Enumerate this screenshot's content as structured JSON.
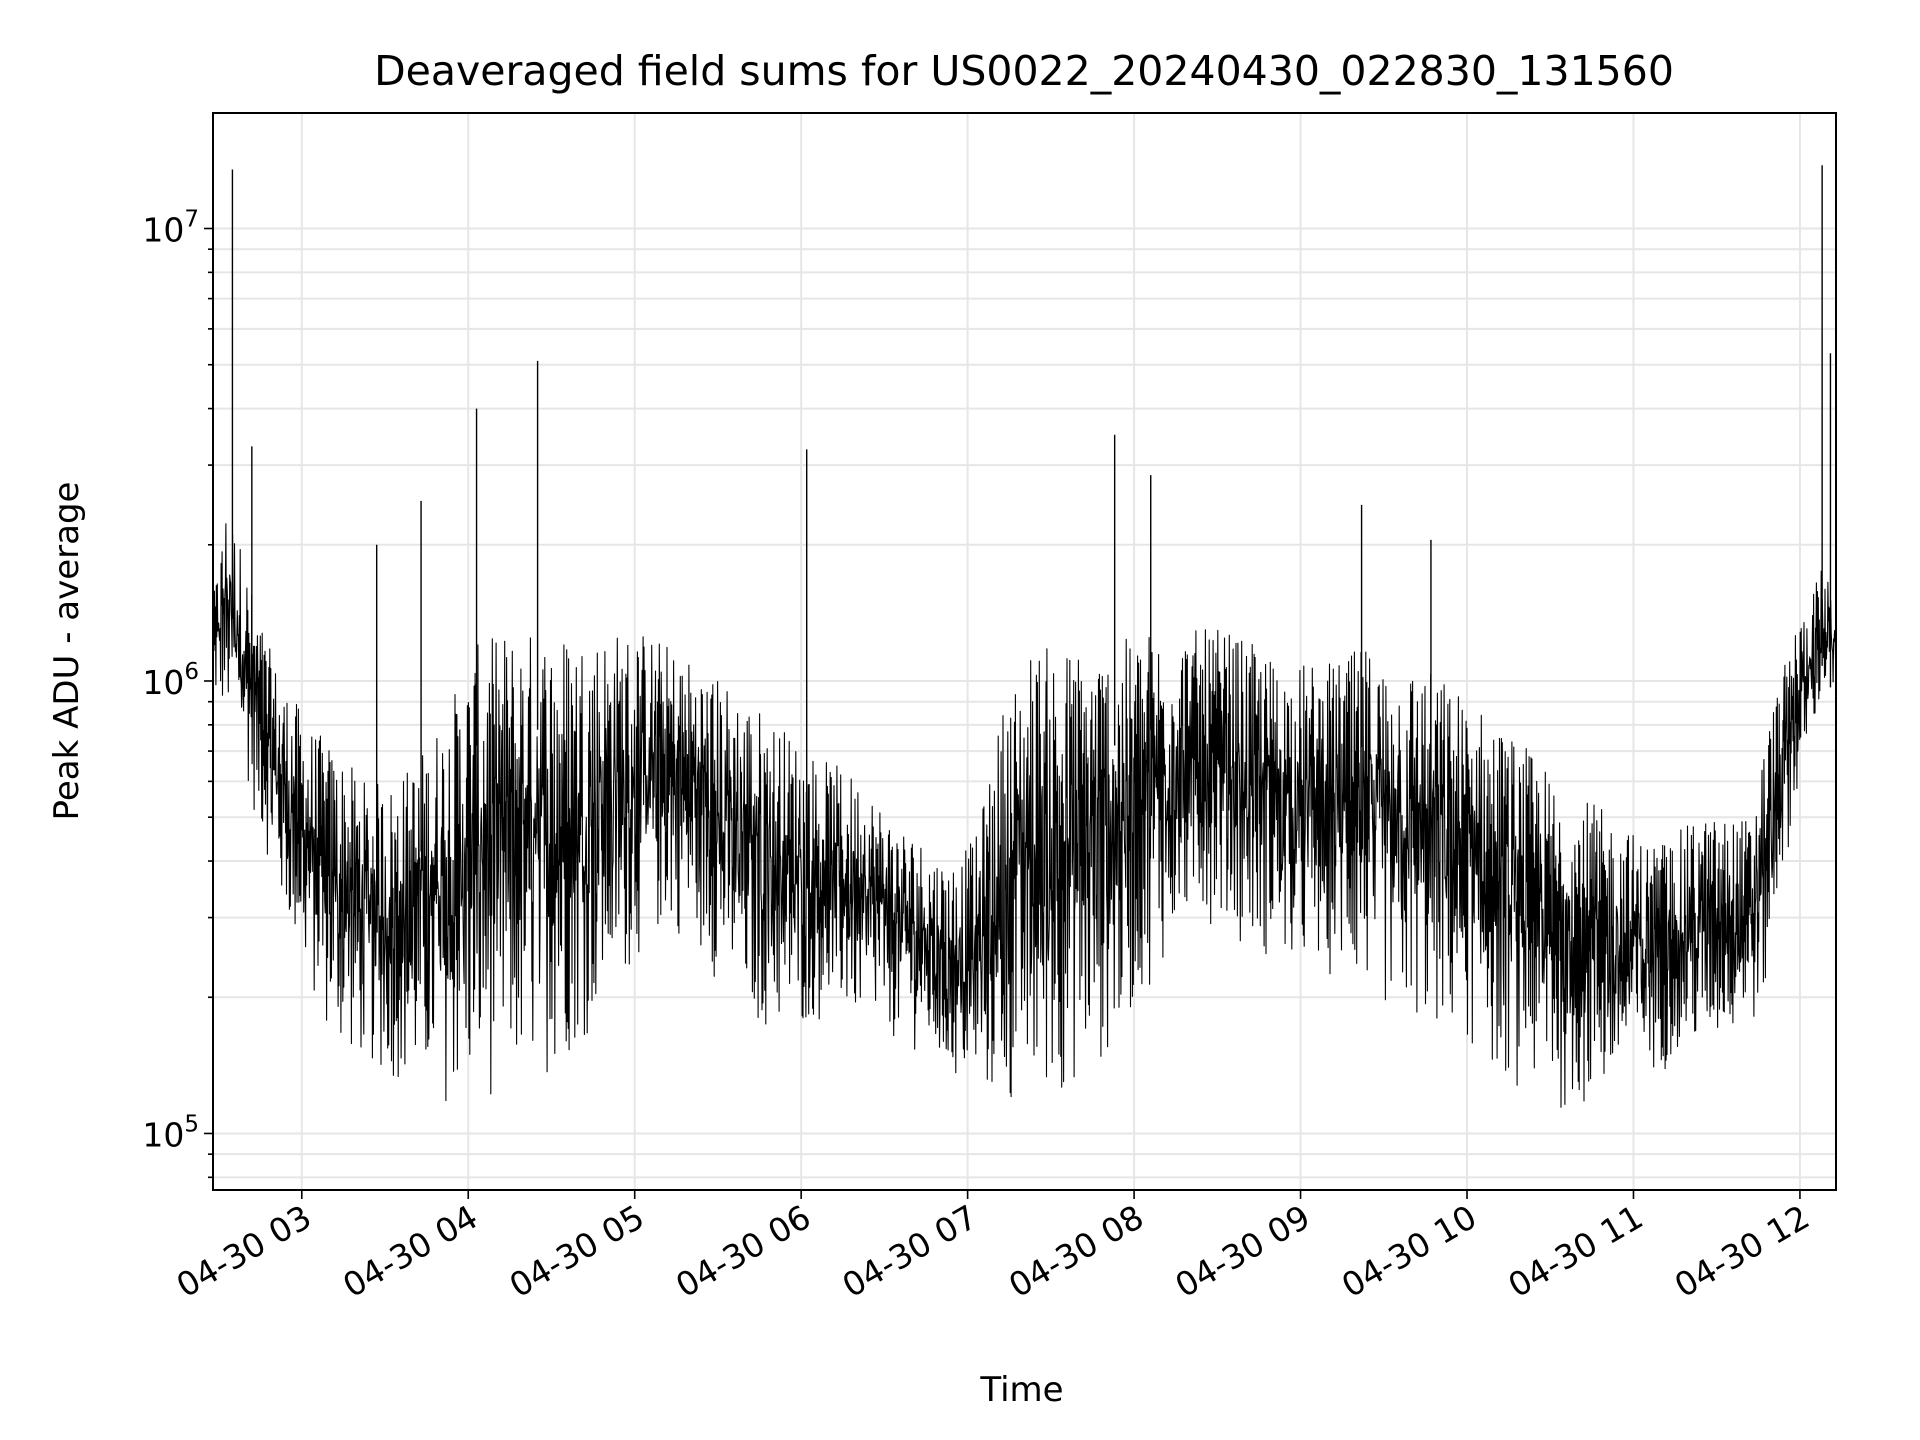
{
  "chart_data": {
    "type": "line",
    "title": "Deaveraged field sums for US0022_20240430_022830_131560",
    "xlabel": "Time",
    "ylabel": "Peak ADU - average",
    "yscale": "log",
    "xlim": [
      "2024-04-30 02:28",
      "2024-04-30 12:13"
    ],
    "ylim": [
      75000,
      18000000
    ],
    "grid": true,
    "line_color": "#000000",
    "grid_color": "#e6e6e6",
    "x_ticks": [
      "04-30 03",
      "04-30 04",
      "04-30 05",
      "04-30 06",
      "04-30 07",
      "04-30 08",
      "04-30 09",
      "04-30 10",
      "04-30 11",
      "04-30 12"
    ],
    "y_ticks": [
      {
        "base": "10",
        "exp": "5",
        "value": 100000
      },
      {
        "base": "10",
        "exp": "6",
        "value": 1000000
      },
      {
        "base": "10",
        "exp": "7",
        "value": 10000000
      }
    ],
    "series": [
      {
        "x": [
          "2024-04-30 02:28",
          "2024-04-30 02:33",
          "2024-04-30 02:38",
          "2024-04-30 02:43",
          "2024-04-30 02:48",
          "2024-04-30 02:53",
          "2024-04-30 02:58",
          "2024-04-30 03:03",
          "2024-04-30 03:13",
          "2024-04-30 03:23",
          "2024-04-30 03:33",
          "2024-04-30 03:43",
          "2024-04-30 03:53",
          "2024-04-30 04:03",
          "2024-04-30 04:13",
          "2024-04-30 04:23",
          "2024-04-30 04:33",
          "2024-04-30 04:43",
          "2024-04-30 04:53",
          "2024-04-30 05:03",
          "2024-04-30 05:13",
          "2024-04-30 05:23",
          "2024-04-30 05:33",
          "2024-04-30 05:43",
          "2024-04-30 05:53",
          "2024-04-30 06:03",
          "2024-04-30 06:13",
          "2024-04-30 06:23",
          "2024-04-30 06:33",
          "2024-04-30 06:43",
          "2024-04-30 06:53",
          "2024-04-30 07:03",
          "2024-04-30 07:13",
          "2024-04-30 07:23",
          "2024-04-30 07:33",
          "2024-04-30 07:43",
          "2024-04-30 07:53",
          "2024-04-30 08:03",
          "2024-04-30 08:13",
          "2024-04-30 08:23",
          "2024-04-30 08:33",
          "2024-04-30 08:43",
          "2024-04-30 08:53",
          "2024-04-30 09:03",
          "2024-04-30 09:13",
          "2024-04-30 09:23",
          "2024-04-30 09:33",
          "2024-04-30 09:43",
          "2024-04-30 09:53",
          "2024-04-30 10:03",
          "2024-04-30 10:13",
          "2024-04-30 10:23",
          "2024-04-30 10:33",
          "2024-04-30 10:43",
          "2024-04-30 10:53",
          "2024-04-30 11:03",
          "2024-04-30 11:13",
          "2024-04-30 11:23",
          "2024-04-30 11:33",
          "2024-04-30 11:43",
          "2024-04-30 11:48",
          "2024-04-30 11:53",
          "2024-04-30 11:58",
          "2024-04-30 12:03",
          "2024-04-30 12:08",
          "2024-04-30 12:13"
        ],
        "low": [
          900000,
          800000,
          700000,
          500000,
          400000,
          300000,
          250000,
          200000,
          150000,
          140000,
          130000,
          120000,
          115000,
          115000,
          120000,
          130000,
          140000,
          160000,
          200000,
          250000,
          280000,
          250000,
          200000,
          170000,
          160000,
          170000,
          180000,
          170000,
          160000,
          150000,
          130000,
          120000,
          110000,
          110000,
          120000,
          130000,
          150000,
          200000,
          250000,
          300000,
          280000,
          250000,
          230000,
          220000,
          220000,
          200000,
          180000,
          170000,
          160000,
          150000,
          130000,
          120000,
          110000,
          110000,
          120000,
          130000,
          140000,
          150000,
          160000,
          170000,
          200000,
          350000,
          500000,
          700000,
          900000,
          900000
        ],
        "high": [
          1500000,
          2500000,
          2000000,
          1500000,
          1200000,
          1000000,
          900000,
          800000,
          700000,
          600000,
          600000,
          700000,
          900000,
          1200000,
          1300000,
          1300000,
          1300000,
          1300000,
          1300000,
          1300000,
          1200000,
          1100000,
          1000000,
          900000,
          800000,
          700000,
          650000,
          600000,
          500000,
          450000,
          400000,
          450000,
          900000,
          1200000,
          1200000,
          1200000,
          1200000,
          1300000,
          1300000,
          1300000,
          1300000,
          1200000,
          1100000,
          1100000,
          1100000,
          1200000,
          1100000,
          1100000,
          1000000,
          900000,
          800000,
          700000,
          600000,
          550000,
          500000,
          450000,
          450000,
          500000,
          500000,
          500000,
          800000,
          1000000,
          1300000,
          1500000,
          1800000,
          1500000
        ],
        "spikes": [
          {
            "x": "2024-04-30 02:35",
            "y": 13500000
          },
          {
            "x": "2024-04-30 02:42",
            "y": 3300000
          },
          {
            "x": "2024-04-30 03:27",
            "y": 2000000
          },
          {
            "x": "2024-04-30 03:43",
            "y": 2500000
          },
          {
            "x": "2024-04-30 04:03",
            "y": 4000000
          },
          {
            "x": "2024-04-30 04:25",
            "y": 5100000
          },
          {
            "x": "2024-04-30 06:02",
            "y": 3250000
          },
          {
            "x": "2024-04-30 07:53",
            "y": 3500000
          },
          {
            "x": "2024-04-30 08:06",
            "y": 2850000
          },
          {
            "x": "2024-04-30 09:22",
            "y": 2450000
          },
          {
            "x": "2024-04-30 09:47",
            "y": 2050000
          },
          {
            "x": "2024-04-30 12:08",
            "y": 13800000
          },
          {
            "x": "2024-04-30 12:11",
            "y": 5300000
          }
        ]
      }
    ]
  }
}
